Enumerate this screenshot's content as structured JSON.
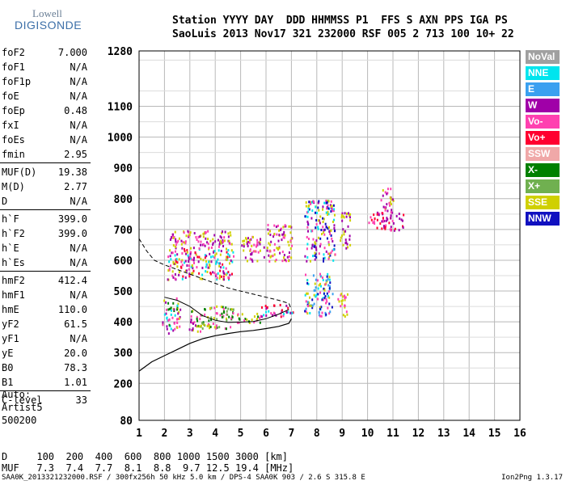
{
  "logo": {
    "line1": "Lowell",
    "line2": "DIGISONDE"
  },
  "header": {
    "line1": "Station YYYY DAY  DDD HHMMSS P1  FFS S AXN PPS IGA PS",
    "line2": "SaoLuis 2013 Nov17 321 232000 RSF 005 2 713 100 10+ 22"
  },
  "params": {
    "group1": [
      {
        "label": "foF2",
        "value": "7.000"
      },
      {
        "label": "foF1",
        "value": "N/A"
      },
      {
        "label": "foF1p",
        "value": "N/A"
      },
      {
        "label": "foE",
        "value": "N/A"
      },
      {
        "label": "foEp",
        "value": "0.48"
      },
      {
        "label": "fxI",
        "value": "N/A"
      },
      {
        "label": "foEs",
        "value": "N/A"
      },
      {
        "label": "fmin",
        "value": "2.95"
      }
    ],
    "group2": [
      {
        "label": "MUF(D)",
        "value": "19.38"
      },
      {
        "label": "M(D)",
        "value": "2.77"
      },
      {
        "label": "D",
        "value": "N/A"
      }
    ],
    "group3": [
      {
        "label": "h`F",
        "value": "399.0"
      },
      {
        "label": "h`F2",
        "value": "399.0"
      },
      {
        "label": "h`E",
        "value": "N/A"
      },
      {
        "label": "h`Es",
        "value": "N/A"
      }
    ],
    "group4": [
      {
        "label": "hmF2",
        "value": "412.4"
      },
      {
        "label": "hmF1",
        "value": "N/A"
      },
      {
        "label": "hmE",
        "value": "110.0"
      },
      {
        "label": "yF2",
        "value": "61.5"
      },
      {
        "label": "yF1",
        "value": "N/A"
      },
      {
        "label": "yE",
        "value": "20.0"
      },
      {
        "label": "B0",
        "value": "78.3"
      },
      {
        "label": "B1",
        "value": "1.01"
      }
    ],
    "group5": [
      {
        "label": "C-level",
        "value": "33"
      }
    ]
  },
  "auto": {
    "line1": "Auto:",
    "line2": "Artist5",
    "line3": "500200"
  },
  "legend": [
    {
      "label": "NoVal",
      "color": "#a0a0a0"
    },
    {
      "label": "NNE",
      "color": "#00e5ee"
    },
    {
      "label": "E",
      "color": "#3aa0f0"
    },
    {
      "label": "W",
      "color": "#a000a8"
    },
    {
      "label": "Vo-",
      "color": "#ff40b0"
    },
    {
      "label": "Vo+",
      "color": "#ff0030"
    },
    {
      "label": "SSW",
      "color": "#f0a8a8"
    },
    {
      "label": "X-",
      "color": "#008000"
    },
    {
      "label": "X+",
      "color": "#70b050"
    },
    {
      "label": "SSE",
      "color": "#d0d000"
    },
    {
      "label": "NNW",
      "color": "#1010c0"
    }
  ],
  "bottom": {
    "d_line": "D     100  200  400  600  800 1000 1500 3000 [km]",
    "muf_line": "MUF   7.3  7.4  7.7  8.1  8.8  9.7 12.5 19.4 [MHz]"
  },
  "footer": {
    "left": "SAA0K_2013321232000.RSF / 300fx256h 50 kHz 5.0 km / DPS-4 SAA0K 903 / 2.6 S 315.8 E",
    "right": "Ion2Png 1.3.17"
  },
  "chart_data": {
    "type": "scatter",
    "title": "",
    "xlabel": "",
    "ylabel": "",
    "xlim": [
      1,
      16
    ],
    "ylim": [
      80,
      1280
    ],
    "x_ticks": [
      1,
      2,
      3,
      4,
      5,
      6,
      7,
      8,
      9,
      10,
      11,
      12,
      13,
      14,
      15,
      16
    ],
    "y_ticks": [
      80,
      200,
      300,
      400,
      500,
      600,
      700,
      800,
      900,
      1000,
      1100,
      1280
    ],
    "grid": true,
    "echo_clusters": [
      {
        "x": [
          1.9,
          2.6
        ],
        "y": [
          365,
          480
        ],
        "colors": [
          "#d0d000",
          "#008000",
          "#ff40b0",
          "#a000a8",
          "#00e5ee"
        ]
      },
      {
        "x": [
          2.9,
          3.4
        ],
        "y": [
          370,
          440
        ],
        "colors": [
          "#d0d000",
          "#ff40b0",
          "#008000",
          "#a000a8"
        ]
      },
      {
        "x": [
          3.4,
          4.7
        ],
        "y": [
          380,
          460
        ],
        "colors": [
          "#d0d000",
          "#008000",
          "#ff40b0",
          "#70b050"
        ]
      },
      {
        "x": [
          2.1,
          4.7
        ],
        "y": [
          540,
          640
        ],
        "colors": [
          "#a000a8",
          "#ff40b0",
          "#d0d000",
          "#ff0030",
          "#00e5ee"
        ]
      },
      {
        "x": [
          2.2,
          4.7
        ],
        "y": [
          640,
          700
        ],
        "colors": [
          "#a000a8",
          "#d0d000",
          "#ff40b0"
        ]
      },
      {
        "x": [
          4.7,
          5.8
        ],
        "y": [
          400,
          430
        ],
        "colors": [
          "#d0d000",
          "#008000",
          "#ff40b0"
        ]
      },
      {
        "x": [
          5.0,
          5.9
        ],
        "y": [
          600,
          680
        ],
        "colors": [
          "#d0d000",
          "#ff40b0",
          "#a000a8"
        ]
      },
      {
        "x": [
          5.8,
          7.1
        ],
        "y": [
          420,
          460
        ],
        "colors": [
          "#a000a8",
          "#ff0030",
          "#ff40b0",
          "#00e5ee"
        ]
      },
      {
        "x": [
          6.0,
          7.0
        ],
        "y": [
          600,
          720
        ],
        "colors": [
          "#d0d000",
          "#a000a8",
          "#ff40b0"
        ]
      },
      {
        "x": [
          7.5,
          8.6
        ],
        "y": [
          420,
          560
        ],
        "colors": [
          "#3aa0f0",
          "#00e5ee",
          "#1010c0",
          "#ff40b0",
          "#d0d000"
        ]
      },
      {
        "x": [
          7.5,
          8.7
        ],
        "y": [
          600,
          800
        ],
        "colors": [
          "#d0d000",
          "#a000a8",
          "#ff40b0",
          "#00e5ee",
          "#1010c0"
        ]
      },
      {
        "x": [
          8.8,
          9.2
        ],
        "y": [
          420,
          500
        ],
        "colors": [
          "#d0d000",
          "#ff40b0"
        ]
      },
      {
        "x": [
          8.9,
          9.3
        ],
        "y": [
          640,
          760
        ],
        "colors": [
          "#a000a8",
          "#d0d000"
        ]
      },
      {
        "x": [
          10.0,
          11.4
        ],
        "y": [
          700,
          760
        ],
        "colors": [
          "#ff40b0",
          "#a000a8",
          "#ff0030"
        ]
      },
      {
        "x": [
          10.5,
          11.0
        ],
        "y": [
          760,
          840
        ],
        "colors": [
          "#a000a8",
          "#ff40b0",
          "#d0d000"
        ]
      }
    ],
    "profile_solid": {
      "x": [
        1.0,
        1.5,
        2.0,
        2.5,
        3.0,
        3.5,
        4.0,
        4.5,
        5.0,
        5.5,
        6.0,
        6.5,
        6.9,
        7.0
      ],
      "y": [
        240,
        270,
        290,
        310,
        330,
        345,
        355,
        362,
        368,
        372,
        378,
        385,
        395,
        410
      ]
    },
    "profile_dashed": {
      "x": [
        1.0,
        1.3,
        1.6,
        2.0,
        2.5,
        3.0,
        3.5,
        4.0,
        4.5,
        5.0,
        5.5,
        6.0,
        6.5,
        6.9,
        7.0
      ],
      "y": [
        670,
        630,
        600,
        585,
        570,
        555,
        540,
        525,
        510,
        500,
        490,
        480,
        470,
        460,
        440
      ]
    },
    "trace_line": {
      "x": [
        2.0,
        2.5,
        3.0,
        3.5,
        4.0,
        4.5,
        5.0,
        5.5,
        6.0,
        6.5,
        6.9
      ],
      "y": [
        480,
        470,
        450,
        420,
        405,
        398,
        399,
        401,
        410,
        425,
        440
      ]
    }
  }
}
